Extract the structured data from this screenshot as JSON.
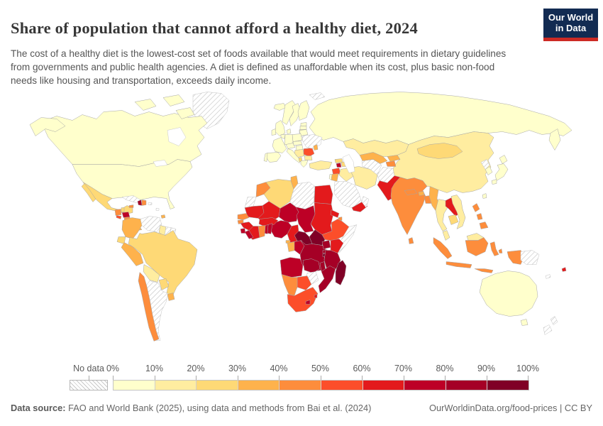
{
  "header": {
    "title": "Share of population that cannot afford a healthy diet, 2024",
    "subtitle": "The cost of a healthy diet is the lowest-cost set of foods available that would meet requirements in dietary guidelines from governments and public health agencies. A diet is defined as unaffordable when its cost, plus basic non-food needs like housing and transportation, exceeds daily income.",
    "logo": {
      "line1": "Our World",
      "line2": "in Data",
      "bg_color": "#122B52",
      "accent_color": "#CC2A24"
    }
  },
  "footer": {
    "source_label": "Data source:",
    "source_text": " FAO and World Bank (2025), using data and methods from Bai et al. (2024)",
    "right_text": "OurWorldinData.org/food-prices | CC BY"
  },
  "chart_data": {
    "type": "choropleth_map",
    "title": "Share of population that cannot afford a healthy diet, 2024",
    "unit": "%",
    "no_data_label": "No data",
    "legend_position": "bottom",
    "legend_ticks": [
      "0%",
      "10%",
      "20%",
      "30%",
      "40%",
      "50%",
      "60%",
      "70%",
      "80%",
      "90%",
      "100%"
    ],
    "bins": [
      {
        "range": "0-10%",
        "color": "#FFFFCC"
      },
      {
        "range": "10-20%",
        "color": "#FFEDA0"
      },
      {
        "range": "20-30%",
        "color": "#FED976"
      },
      {
        "range": "30-40%",
        "color": "#FEB24C"
      },
      {
        "range": "40-50%",
        "color": "#FD8D3C"
      },
      {
        "range": "50-60%",
        "color": "#FC4E2A"
      },
      {
        "range": "60-70%",
        "color": "#E31A1C"
      },
      {
        "range": "70-80%",
        "color": "#BD0026"
      },
      {
        "range": "80-90%",
        "color": "#A50026"
      },
      {
        "range": "90-100%",
        "color": "#800026"
      }
    ],
    "countries": {
      "Canada": "0-10%",
      "United States": "0-10%",
      "Greenland": "no-data",
      "Iceland": "0-10%",
      "Mexico": "20-30%",
      "Guatemala": "40-50%",
      "Belize": "20-30%",
      "Honduras": "70-80%",
      "El Salvador": "50-60%",
      "Nicaragua": "40-50%",
      "Costa Rica": "20-30%",
      "Panama": "30-40%",
      "Cuba": "no-data",
      "Jamaica": "40-50%",
      "Haiti": "80-90%",
      "Dominican Republic": "40-50%",
      "Puerto Rico": "no-data",
      "Lesser Antilles": "no-data",
      "Colombia": "30-40%",
      "Venezuela": "no-data",
      "Guyana": "10-20%",
      "Suriname": "no-data",
      "French Guiana": "no-data",
      "Trinidad and Tobago": "30-40%",
      "Ecuador": "20-30%",
      "Peru": "30-40%",
      "Brazil": "20-30%",
      "Bolivia": "10-20%",
      "Paraguay": "20-30%",
      "Uruguay": "30-40%",
      "Chile": "40-50%",
      "Argentina": "no-data",
      "United Kingdom": "0-10%",
      "Ireland": "0-10%",
      "Norway": "0-10%",
      "Sweden": "0-10%",
      "Finland": "0-10%",
      "Denmark": "0-10%",
      "Estonia": "0-10%",
      "Latvia": "0-10%",
      "Lithuania": "0-10%",
      "Poland": "0-10%",
      "Germany": "0-10%",
      "Benelux": "0-10%",
      "France": "0-10%",
      "Spain": "0-10%",
      "Portugal": "0-10%",
      "Italy": "0-10%",
      "Austria": "0-10%",
      "Czechia": "0-10%",
      "Hungary": "0-10%",
      "Serbia": "10-20%",
      "Albania": "20-30%",
      "Romania": "50-60%",
      "Bulgaria": "10-20%",
      "Greece": "0-10%",
      "Ukraine": "no-data",
      "Belarus": "0-10%",
      "Moldova": "30-40%",
      "Russia": "0-10%",
      "Svalbard": "no-data",
      "Turkey": "10-20%",
      "Georgia": "20-30%",
      "Armenia": "70-80%",
      "Azerbaijan": "20-30%",
      "Syria": "50-60%",
      "Israel": "0-10%",
      "Jordan": "30-40%",
      "Iraq": "10-20%",
      "Saudi Arabia": "no-data",
      "Yemen": "60-70%",
      "Oman": "no-data",
      "Iran": "10-20%",
      "Turkmenistan": "no-data",
      "Uzbekistan": "30-40%",
      "Kyrgyzstan": "30-40%",
      "Tajikistan": "40-50%",
      "Afghanistan": "no-data",
      "Pakistan": "60-70%",
      "Kazakhstan": "10-20%",
      "India": "40-50%",
      "Nepal": "40-50%",
      "Bhutan": "30-40%",
      "Bangladesh": "40-50%",
      "Sri Lanka": "40-50%",
      "China": "10-20%",
      "Mongolia": "20-30%",
      "North Korea": "no-data",
      "South Korea": "0-10%",
      "Japan": "0-10%",
      "Taiwan": "0-10%",
      "Myanmar": "30-40%",
      "Thailand": "10-20%",
      "Laos": "60-70%",
      "Vietnam": "10-20%",
      "Cambodia": "20-30%",
      "Malaysia": "10-20%",
      "Indonesia": "40-50%",
      "Papua New Guinea": "no-data",
      "Philippines": "40-50%",
      "Fiji": "60-70%",
      "New Caledonia": "no-data",
      "Australia": "0-10%",
      "New Zealand": "no-data",
      "Morocco": "40-50%",
      "Western Sahara": "no-data",
      "Algeria": "20-30%",
      "Tunisia": "30-40%",
      "Libya": "no-data",
      "Egypt": "60-70%",
      "Mauritania": "60-70%",
      "Mali": "60-70%",
      "Niger": "70-80%",
      "Chad": "70-80%",
      "Sudan": "60-70%",
      "Eritrea": "60-70%",
      "Djibouti": "40-50%",
      "Ethiopia": "50-60%",
      "Somalia": "no-data",
      "South Sudan": "90-100%",
      "Central African Republic": "90-100%",
      "Cameroon": "60-70%",
      "Nigeria": "70-80%",
      "Benin": "70-80%",
      "Togo": "70-80%",
      "Ghana": "40-50%",
      "Cote d'Ivoire": "60-70%",
      "Burkina Faso": "60-70%",
      "Guinea": "60-70%",
      "Guinea-Bissau": "40-50%",
      "Senegal": "40-50%",
      "Sierra Leone": "70-80%",
      "Liberia": "70-80%",
      "Gabon": "30-40%",
      "Equatorial Guinea": "30-40%",
      "Congo": "70-80%",
      "Democratic Republic of Congo": "80-90%",
      "Uganda": "80-90%",
      "Kenya": "60-70%",
      "Rwanda": "80-90%",
      "Burundi": "90-100%",
      "Tanzania": "80-90%",
      "Angola": "70-80%",
      "Zambia": "80-90%",
      "Malawi": "80-90%",
      "Mozambique": "80-90%",
      "Zimbabwe": "no-data",
      "Botswana": "50-60%",
      "Namibia": "40-50%",
      "South Africa": "50-60%",
      "Lesotho": "70-80%",
      "Eswatini": "60-70%",
      "Madagascar": "90-100%"
    }
  }
}
